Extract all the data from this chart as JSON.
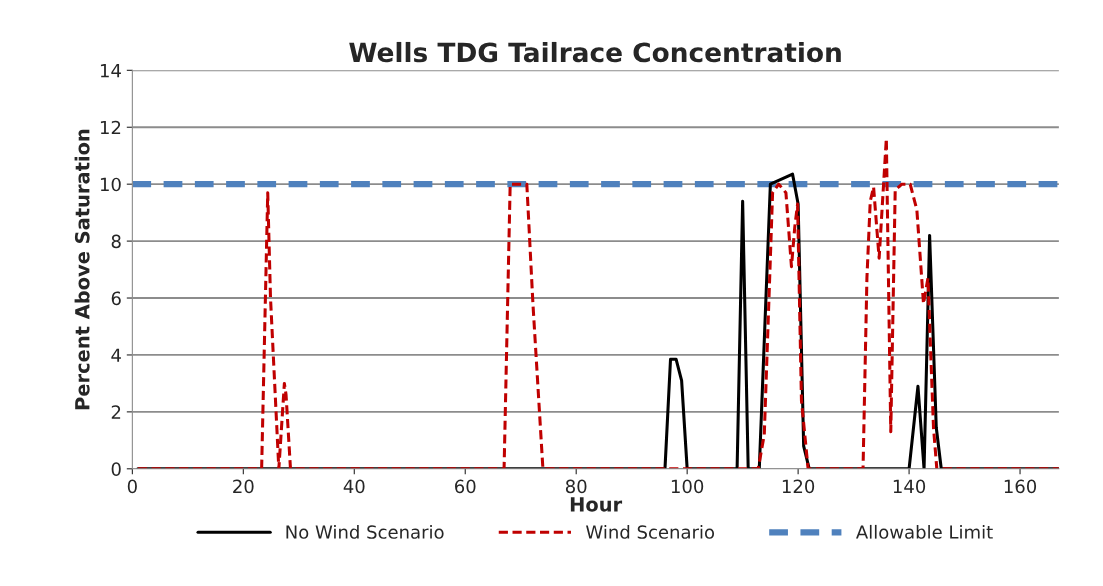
{
  "chart_data": {
    "type": "line",
    "title": "Wells TDG Tailrace Concentration",
    "xlabel": "Hour",
    "ylabel": "Percent Above Saturation",
    "xlim": [
      0,
      167
    ],
    "xticks": [
      0,
      20,
      40,
      60,
      80,
      100,
      120,
      140,
      160
    ],
    "ylim": [
      0,
      14
    ],
    "yticks": [
      0,
      2,
      4,
      6,
      8,
      10,
      12,
      14
    ],
    "grid": "y",
    "legend": "bottom",
    "marker": "none",
    "series": [
      {
        "name": "No Wind Scenario",
        "color": "#000000",
        "line_style": "solid",
        "x": [
          1,
          96,
          97,
          98,
          99,
          100,
          109,
          110,
          111,
          113,
          115,
          119,
          120,
          121,
          122,
          140,
          141.6,
          142.7,
          143.7,
          144.9,
          145.8,
          167
        ],
        "values": [
          0,
          0,
          3.85,
          3.85,
          3.1,
          0,
          0,
          9.4,
          0,
          0,
          10,
          10.35,
          9.3,
          0.8,
          0,
          0,
          2.9,
          0,
          8.2,
          1.45,
          0,
          0
        ]
      },
      {
        "name": "Wind Scenario",
        "color": "#c00000",
        "line_style": "dashed",
        "x": [
          1,
          23.3,
          24.4,
          24.9,
          26.4,
          27.4,
          27.7,
          28.5,
          67,
          68.1,
          71.1,
          72.2,
          74,
          112.8,
          113.9,
          115.4,
          116.5,
          117.8,
          118.8,
          119.4,
          119.9,
          120.6,
          121.8,
          131.7,
          132.4,
          133,
          133.6,
          134.6,
          135.9,
          136.7,
          137.5,
          138.7,
          140.2,
          141.4,
          142.6,
          143.4,
          144.4,
          145,
          167
        ],
        "values": [
          0,
          0,
          9.7,
          6,
          0,
          3,
          2.6,
          0,
          0,
          10,
          10,
          5.8,
          0,
          0,
          1.2,
          9.7,
          10,
          9.7,
          7.1,
          8.5,
          9.3,
          2.4,
          0,
          0,
          6.7,
          9.4,
          9.9,
          7.4,
          11.6,
          1.3,
          9.8,
          10,
          10,
          9.1,
          5.8,
          6.7,
          1.45,
          0,
          0
        ]
      }
    ],
    "ref_lines": [
      {
        "axis": "y",
        "value": 10,
        "label": "Allowable Limit",
        "color": "#4f81bd",
        "line_style": "dashed"
      }
    ]
  }
}
